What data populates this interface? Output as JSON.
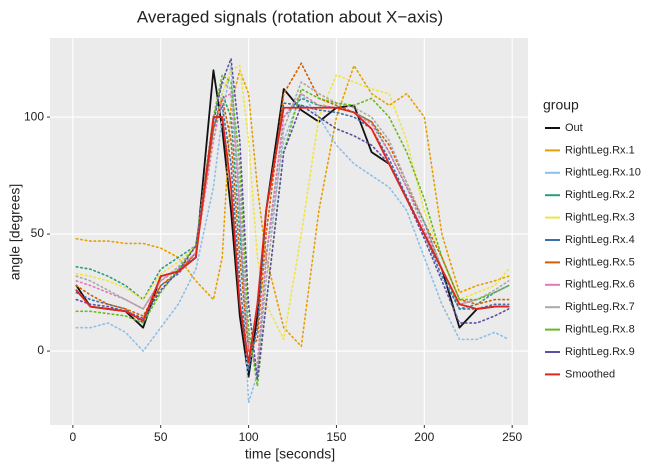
{
  "chart_data": {
    "type": "line",
    "title": "Averaged signals (rotation about X−axis)",
    "x_label": "time [seconds]",
    "y_label": "angle [degrees]",
    "legend_title": "group",
    "x": [
      2,
      10,
      20,
      30,
      40,
      50,
      60,
      70,
      80,
      85,
      90,
      95,
      100,
      105,
      110,
      120,
      130,
      140,
      150,
      160,
      170,
      180,
      190,
      200,
      210,
      220,
      230,
      240,
      248
    ],
    "xlim": [
      -13,
      259
    ],
    "xticks": [
      0,
      50,
      100,
      150,
      200,
      250
    ],
    "ylim": [
      -31.6,
      133.8
    ],
    "yticks": [
      0,
      50,
      100
    ],
    "grid": true,
    "legend": "right",
    "series": [
      {
        "name": "Out",
        "color": "#111111",
        "linestyle": "solid",
        "values": [
          28,
          19,
          18,
          17,
          10,
          32,
          34,
          40,
          120,
          95,
          60,
          15,
          -11,
          15,
          60,
          112,
          103,
          98,
          104,
          105,
          85,
          80,
          65,
          50,
          35,
          10,
          18,
          19,
          19
        ]
      },
      {
        "name": "RightLeg.Rx.1",
        "color": "#e69f00",
        "linestyle": "dotted",
        "values": [
          48,
          47,
          47,
          46,
          46,
          44,
          40,
          30,
          22,
          40,
          105,
          120,
          110,
          70,
          40,
          10,
          2,
          60,
          100,
          122,
          110,
          105,
          110,
          100,
          50,
          25,
          28,
          30,
          32
        ]
      },
      {
        "name": "RightLeg.Rx.10",
        "color": "#8dbfe8",
        "linestyle": "dotted",
        "values": [
          10,
          10,
          12,
          8,
          0,
          10,
          20,
          35,
          70,
          100,
          122,
          60,
          -22,
          -10,
          40,
          90,
          110,
          100,
          88,
          80,
          75,
          70,
          60,
          40,
          20,
          5,
          5,
          8,
          5
        ]
      },
      {
        "name": "RightLeg.Rx.2",
        "color": "#2a9d7c",
        "linestyle": "dotted",
        "values": [
          36,
          35,
          32,
          28,
          22,
          35,
          40,
          45,
          95,
          110,
          100,
          50,
          5,
          -10,
          40,
          100,
          108,
          105,
          104,
          102,
          98,
          85,
          70,
          55,
          35,
          18,
          20,
          25,
          28
        ]
      },
      {
        "name": "RightLeg.Rx.3",
        "color": "#f0e442",
        "linestyle": "dotted",
        "values": [
          33,
          32,
          30,
          27,
          22,
          33,
          38,
          45,
          90,
          110,
          120,
          122,
          90,
          40,
          20,
          5,
          50,
          100,
          118,
          115,
          112,
          110,
          90,
          60,
          40,
          22,
          25,
          28,
          35
        ]
      },
      {
        "name": "RightLeg.Rx.4",
        "color": "#3a6fb0",
        "linestyle": "dotted",
        "values": [
          25,
          22,
          20,
          18,
          12,
          28,
          33,
          42,
          95,
          105,
          80,
          30,
          -8,
          10,
          60,
          106,
          105,
          103,
          102,
          100,
          95,
          82,
          66,
          50,
          32,
          18,
          18,
          20,
          20
        ]
      },
      {
        "name": "RightLeg.Rx.5",
        "color": "#d55e00",
        "linestyle": "dotted",
        "values": [
          28,
          24,
          20,
          18,
          15,
          28,
          34,
          42,
          95,
          108,
          90,
          40,
          0,
          5,
          50,
          110,
          123,
          108,
          105,
          102,
          98,
          88,
          72,
          55,
          40,
          22,
          20,
          22,
          22
        ]
      },
      {
        "name": "RightLeg.Rx.6",
        "color": "#e07bb5",
        "linestyle": "dotted",
        "values": [
          30,
          28,
          25,
          22,
          18,
          30,
          35,
          42,
          90,
          108,
          110,
          60,
          0,
          -5,
          40,
          100,
          110,
          105,
          104,
          102,
          97,
          85,
          70,
          52,
          35,
          20,
          22,
          25,
          28
        ]
      },
      {
        "name": "RightLeg.Rx.7",
        "color": "#aaaaaa",
        "linestyle": "dotted",
        "values": [
          32,
          30,
          26,
          22,
          18,
          30,
          36,
          45,
          100,
          115,
          112,
          70,
          5,
          -10,
          30,
          95,
          115,
          110,
          106,
          104,
          100,
          90,
          72,
          55,
          35,
          20,
          22,
          26,
          30
        ]
      },
      {
        "name": "RightLeg.Rx.8",
        "color": "#66bb22",
        "linestyle": "dotted",
        "values": [
          17,
          17,
          16,
          15,
          12,
          25,
          35,
          45,
          100,
          118,
          115,
          80,
          10,
          -15,
          20,
          85,
          112,
          108,
          106,
          105,
          108,
          100,
          85,
          65,
          40,
          22,
          22,
          25,
          28
        ]
      },
      {
        "name": "RightLeg.Rx.9",
        "color": "#5e4fa2",
        "linestyle": "dotted",
        "values": [
          22,
          20,
          19,
          17,
          14,
          26,
          34,
          45,
          98,
          115,
          125,
          90,
          20,
          -12,
          20,
          85,
          105,
          100,
          95,
          92,
          88,
          80,
          65,
          48,
          30,
          12,
          12,
          15,
          18
        ]
      },
      {
        "name": "Smoothed",
        "color": "#e0261c",
        "linestyle": "solid",
        "values": [
          26,
          19,
          18,
          17,
          13,
          32,
          34,
          40,
          100,
          100,
          70,
          20,
          -5,
          20,
          60,
          104,
          104,
          104,
          104,
          102,
          95,
          80,
          65,
          50,
          35,
          20,
          18,
          19,
          19
        ]
      }
    ]
  }
}
